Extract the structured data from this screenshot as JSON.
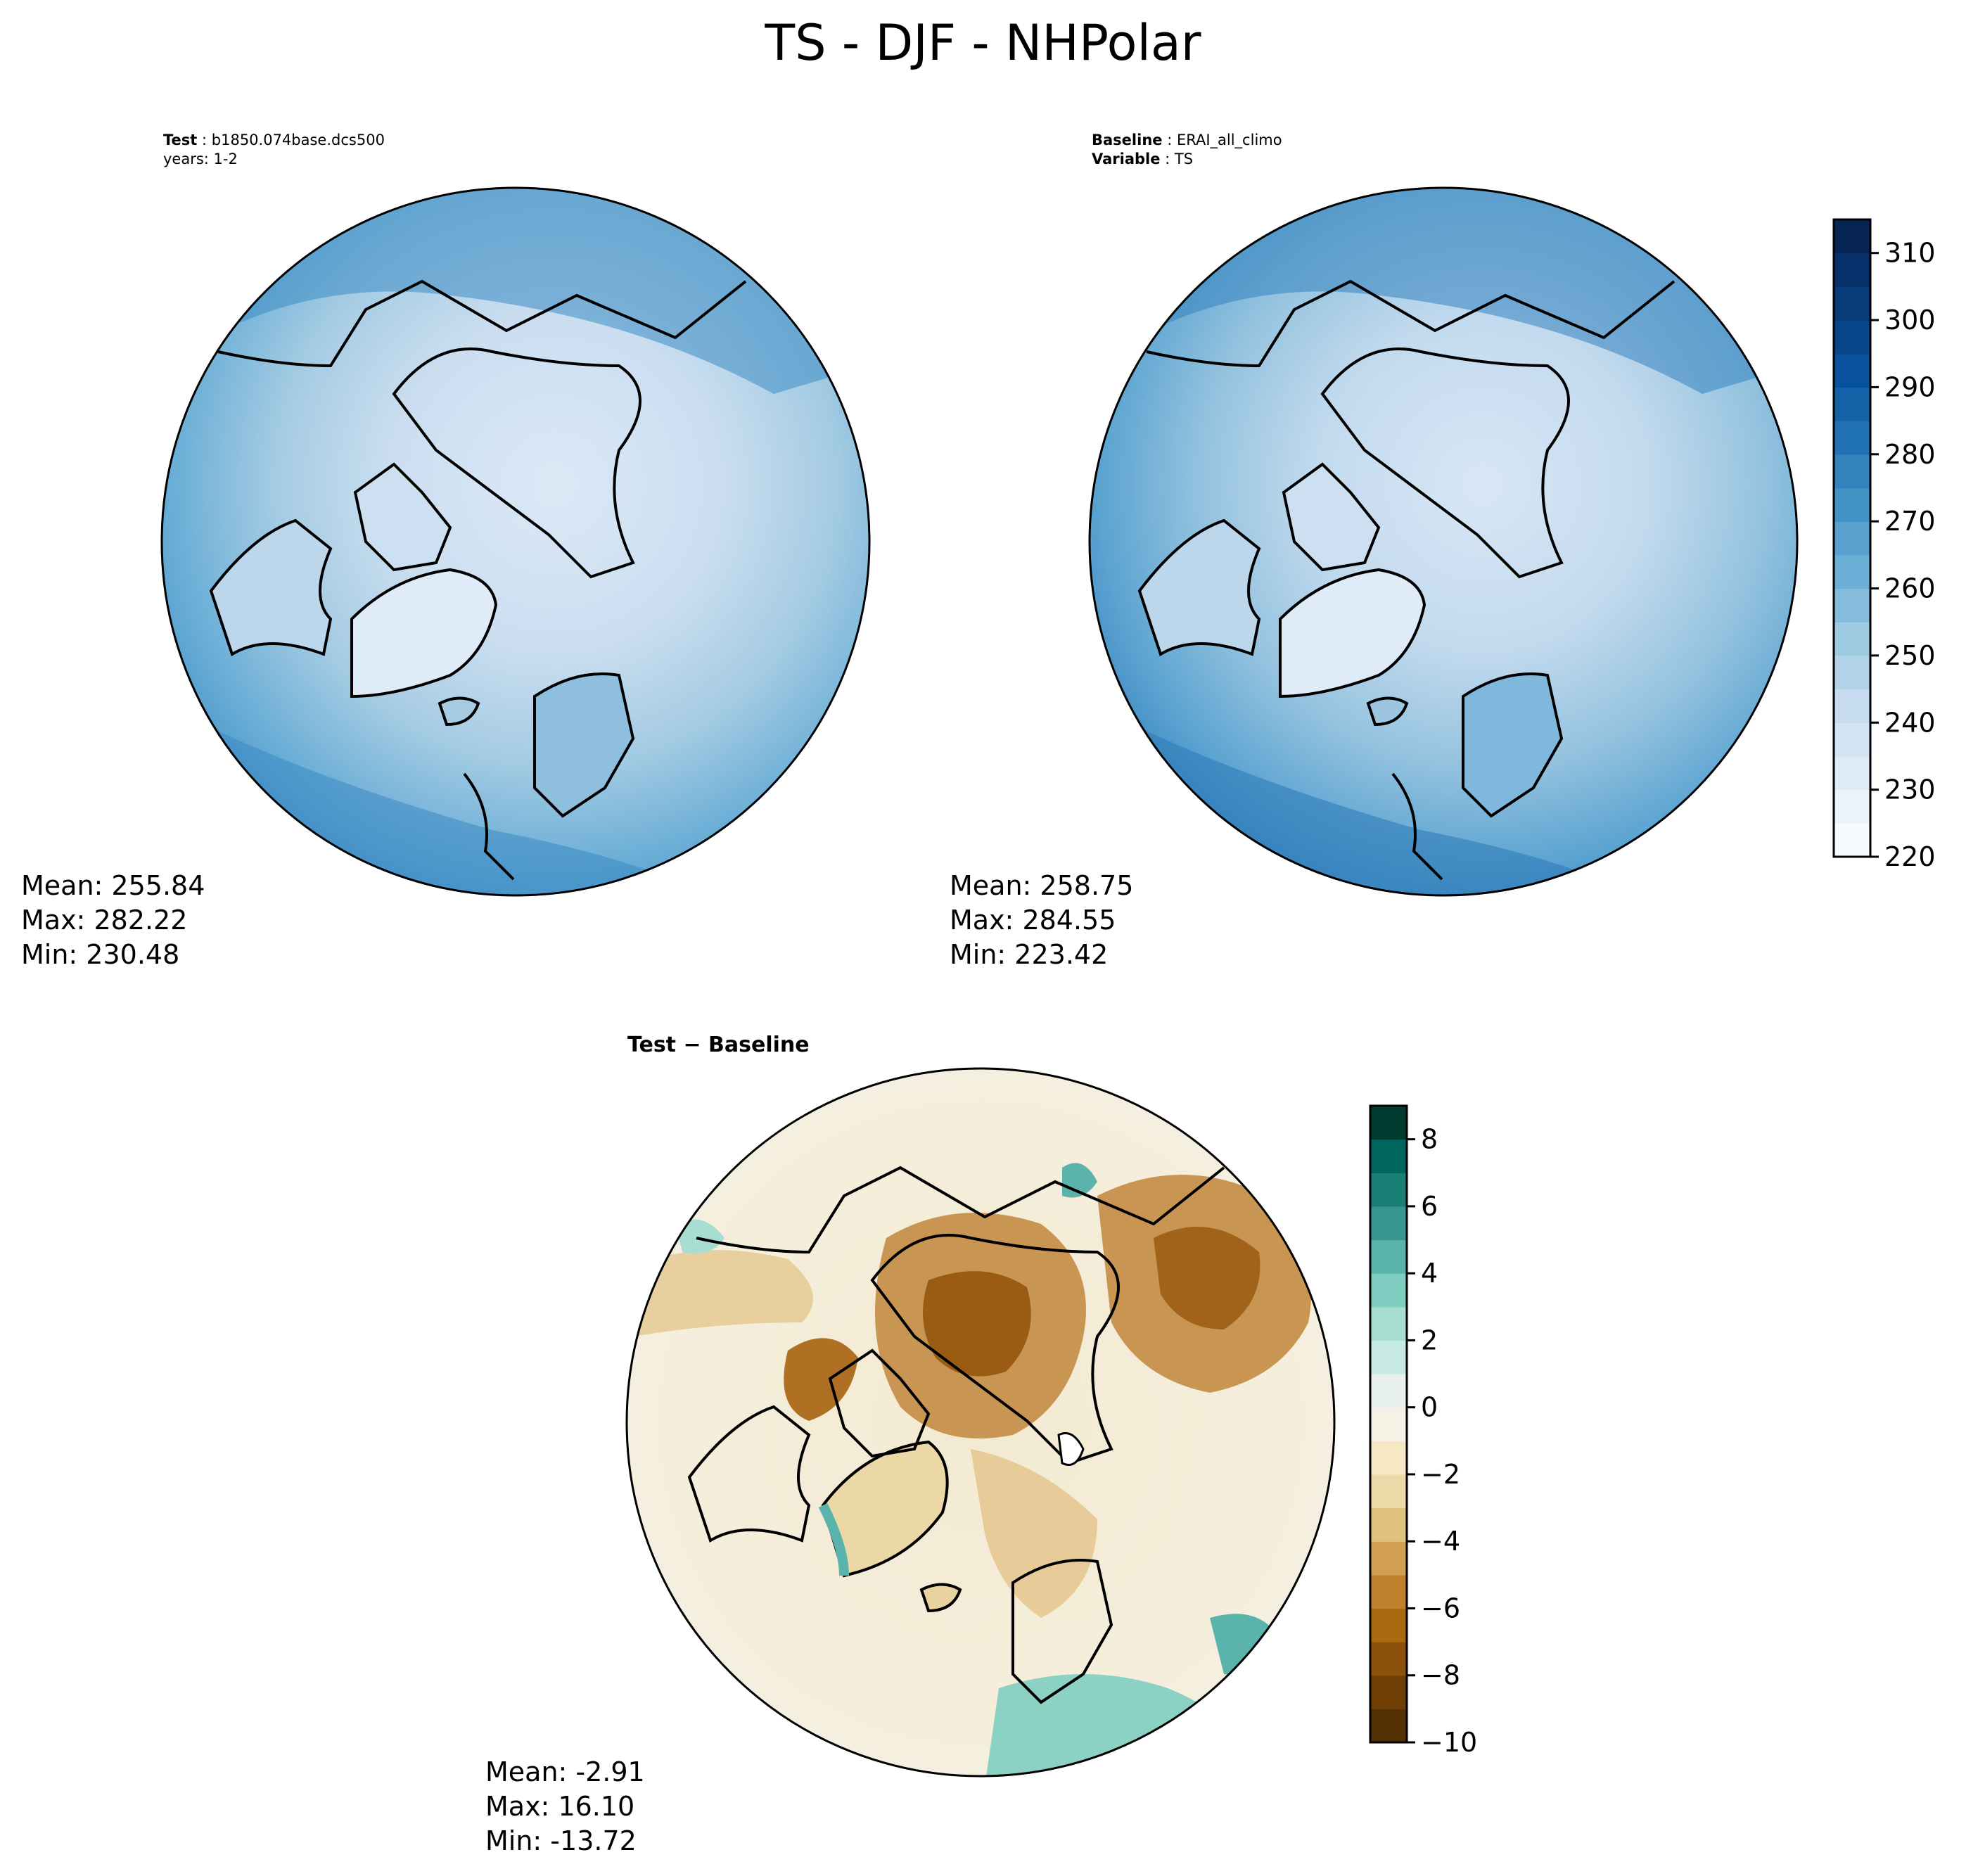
{
  "title": "TS - DJF - NHPolar",
  "panels": {
    "test": {
      "line1_label": "Test",
      "line1_value": "b1850.074base.dcs500",
      "line2": "years: 1-2",
      "mean": "Mean: 255.84",
      "max": "Max: 282.22",
      "min": "Min: 230.48"
    },
    "baseline": {
      "line1_label": "Baseline",
      "line1_value": "ERAI_all_climo",
      "line2_label": "Variable",
      "line2_value": "TS",
      "mean": "Mean: 258.75",
      "max": "Max: 284.55",
      "min": "Min: 223.42"
    },
    "difference": {
      "title": "Test − Baseline",
      "mean": "Mean: -2.91",
      "max": "Max: 16.10",
      "min": "Min: -13.72"
    }
  },
  "colorbars": {
    "main": {
      "ticks": [
        "220",
        "230",
        "240",
        "250",
        "260",
        "270",
        "280",
        "290",
        "300",
        "310"
      ],
      "range": [
        220,
        315
      ],
      "levels": 19,
      "colors": [
        "#f7fbff",
        "#ebf3fb",
        "#deebf7",
        "#d2e3f3",
        "#c6dbef",
        "#b2d2e8",
        "#9ecae1",
        "#85bcdc",
        "#6baed6",
        "#58a1cf",
        "#4292c6",
        "#3282be",
        "#2171b5",
        "#1461a8",
        "#08519c",
        "#08458a",
        "#083b7a",
        "#08306b",
        "#062554"
      ]
    },
    "diff": {
      "ticks": [
        "8",
        "6",
        "4",
        "2",
        "0",
        "−2",
        "−4",
        "−6",
        "−8",
        "−10"
      ],
      "range": [
        -10,
        9
      ],
      "levels": 19,
      "colors": [
        "#543005",
        "#6f3f06",
        "#8c510a",
        "#a8690f",
        "#bf812d",
        "#d1a052",
        "#dfc27d",
        "#eed9a8",
        "#f6e8c3",
        "#f5f1e4",
        "#e8f1ef",
        "#c7eae5",
        "#a8ddd2",
        "#80cdc1",
        "#5ab4ac",
        "#35978f",
        "#1b7f76",
        "#01665e",
        "#003c30"
      ]
    }
  }
}
